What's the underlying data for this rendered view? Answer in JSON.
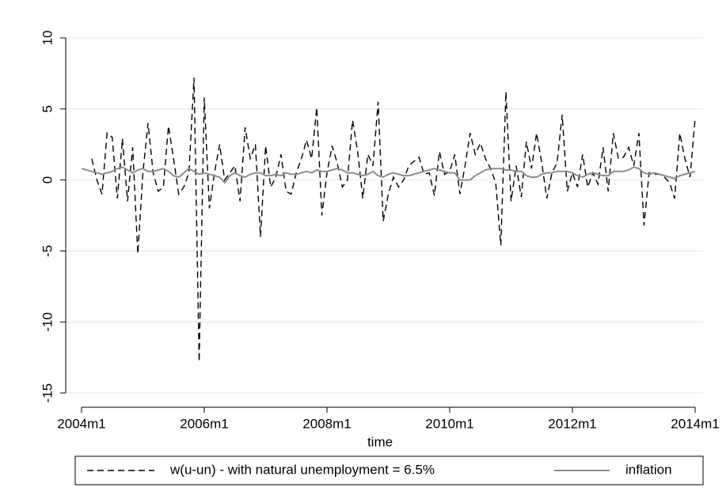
{
  "chart_data": {
    "type": "line",
    "x_label": "time",
    "x": [
      "2004m1",
      "2004m2",
      "2004m3",
      "2004m4",
      "2004m5",
      "2004m6",
      "2004m7",
      "2004m8",
      "2004m9",
      "2004m10",
      "2004m11",
      "2004m12",
      "2005m1",
      "2005m2",
      "2005m3",
      "2005m4",
      "2005m5",
      "2005m6",
      "2005m7",
      "2005m8",
      "2005m9",
      "2005m10",
      "2005m11",
      "2005m12",
      "2006m1",
      "2006m2",
      "2006m3",
      "2006m4",
      "2006m5",
      "2006m6",
      "2006m7",
      "2006m8",
      "2006m9",
      "2006m10",
      "2006m11",
      "2006m12",
      "2007m1",
      "2007m2",
      "2007m3",
      "2007m4",
      "2007m5",
      "2007m6",
      "2007m7",
      "2007m8",
      "2007m9",
      "2007m10",
      "2007m11",
      "2007m12",
      "2008m1",
      "2008m2",
      "2008m3",
      "2008m4",
      "2008m5",
      "2008m6",
      "2008m7",
      "2008m8",
      "2008m9",
      "2008m10",
      "2008m11",
      "2008m12",
      "2009m1",
      "2009m2",
      "2009m3",
      "2009m4",
      "2009m5",
      "2009m6",
      "2009m7",
      "2009m8",
      "2009m9",
      "2009m10",
      "2009m11",
      "2009m12",
      "2010m1",
      "2010m2",
      "2010m3",
      "2010m4",
      "2010m5",
      "2010m6",
      "2010m7",
      "2010m8",
      "2010m9",
      "2010m10",
      "2010m11",
      "2010m12",
      "2011m1",
      "2011m2",
      "2011m3",
      "2011m4",
      "2011m5",
      "2011m6",
      "2011m7",
      "2011m8",
      "2011m9",
      "2011m10",
      "2011m11",
      "2011m12",
      "2012m1",
      "2012m2",
      "2012m3",
      "2012m4",
      "2012m5",
      "2012m6",
      "2012m7",
      "2012m8",
      "2012m9",
      "2012m10",
      "2012m11",
      "2012m12",
      "2013m1",
      "2013m2",
      "2013m3",
      "2013m4",
      "2013m5",
      "2013m6",
      "2013m7",
      "2013m8",
      "2013m9",
      "2013m10",
      "2013m11",
      "2013m12",
      "2014m1"
    ],
    "xticks": [
      "2004m1",
      "2006m1",
      "2008m1",
      "2010m1",
      "2012m1",
      "2014m1"
    ],
    "ylim": [
      -16,
      12
    ],
    "yticks": [
      -15,
      -10,
      -5,
      0,
      5,
      10
    ],
    "grid": true,
    "legend_position": "bottom",
    "series": [
      {
        "name": "w(u-un) - with natural unemployment = 6.5%",
        "color": "#000000",
        "dash": true,
        "values": [
          null,
          null,
          1.5,
          0,
          -1,
          3.3,
          3,
          -1.3,
          2.9,
          -1.5,
          2.3,
          -5.2,
          0.5,
          4,
          0.5,
          -0.8,
          -0.5,
          3.8,
          1.5,
          -1,
          -0.5,
          0.5,
          7.2,
          -12.8,
          5.8,
          -2,
          0.5,
          2.5,
          0,
          0.5,
          1,
          -1.5,
          3.7,
          1.5,
          2.5,
          -4,
          2.4,
          -0.5,
          0.2,
          1.8,
          -0.8,
          -1,
          0.5,
          1.5,
          2.8,
          1.5,
          5.1,
          -2.5,
          0.5,
          2.4,
          1.2,
          -0.5,
          0,
          4.2,
          2,
          -1.3,
          1.8,
          1,
          5.5,
          -2.9,
          -1,
          0.2,
          -0.5,
          0,
          1,
          1.3,
          1.6,
          0.4,
          0.5,
          -1.1,
          2,
          0.4,
          0.6,
          1.8,
          -1,
          1,
          3.3,
          1.8,
          2.6,
          1.5,
          0.8,
          -0.2,
          -4.6,
          6.2,
          -1.5,
          1,
          -1.2,
          2.7,
          0.8,
          3.3,
          1.2,
          -1.3,
          0.5,
          1.2,
          4.6,
          -0.8,
          0.5,
          -0.5,
          1.8,
          -0.5,
          0.5,
          -0.3,
          2.3,
          -0.8,
          3.3,
          1.5,
          1.6,
          2.3,
          1,
          3.3,
          -3.2,
          0.5,
          0.4,
          0.4,
          0.2,
          -0.2,
          -1.3,
          3.3,
          1.5,
          0.2,
          4.3
        ]
      },
      {
        "name": "inflation",
        "color": "#8c8c8c",
        "dash": false,
        "values": [
          0.8,
          0.7,
          0.6,
          0.5,
          0.4,
          0.5,
          0.6,
          0.8,
          0.9,
          0.7,
          0.5,
          0.7,
          0.8,
          0.6,
          0.6,
          0.7,
          0.8,
          0.6,
          0.3,
          0.2,
          0.5,
          0.8,
          0.6,
          0.4,
          0.5,
          0.4,
          0.3,
          0.2,
          -0.2,
          0.3,
          0.5,
          0.3,
          0.2,
          0.4,
          0.5,
          0.5,
          0.3,
          0.3,
          0.4,
          0.3,
          0.5,
          0.4,
          0.4,
          0.5,
          0.6,
          0.5,
          0.7,
          0.6,
          0.6,
          0.7,
          0.8,
          0.7,
          0.5,
          0.5,
          0.4,
          0.3,
          0.4,
          0.6,
          0.3,
          0.2,
          0.4,
          0.5,
          0.4,
          0.3,
          0.3,
          0.4,
          0.5,
          0.6,
          0.7,
          0.8,
          0.7,
          0.6,
          0.5,
          0.5,
          0.0,
          0.0,
          0.0,
          0.3,
          0.5,
          0.7,
          0.8,
          0.8,
          0.8,
          0.7,
          0.7,
          0.6,
          0.6,
          0.3,
          0.2,
          0.2,
          0.4,
          0.5,
          0.5,
          0.6,
          0.6,
          0.6,
          0.5,
          0.3,
          0.2,
          0.4,
          0.5,
          0.4,
          0.3,
          0.3,
          0.6,
          0.6,
          0.6,
          0.7,
          0.9,
          0.8,
          0.5,
          0.4,
          0.5,
          0.4,
          0.3,
          0.2,
          0.1,
          0.3,
          0.4,
          0.5,
          0.6
        ]
      }
    ]
  }
}
